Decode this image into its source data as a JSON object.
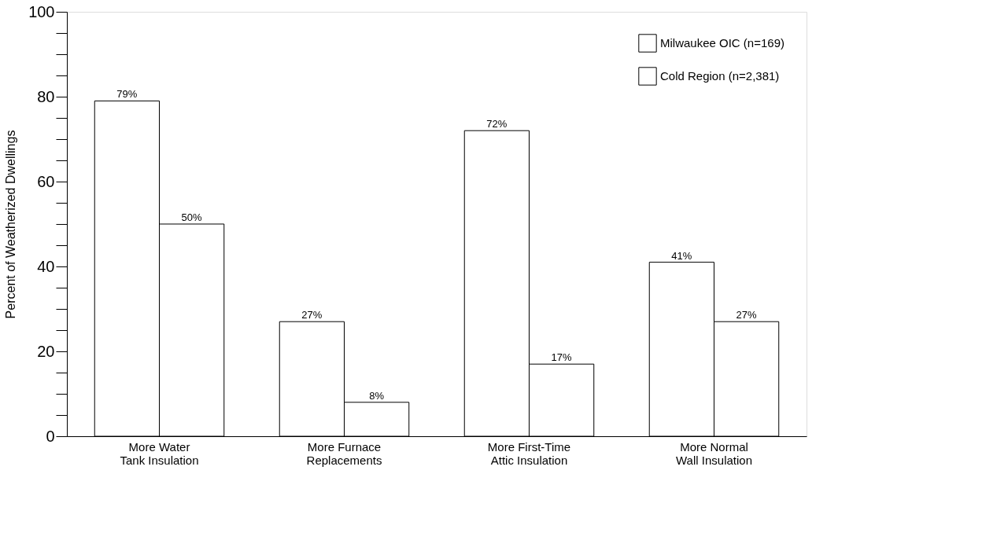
{
  "chart_data": {
    "type": "bar",
    "ylabel": "Percent of Weatherized Dwellings",
    "categories": [
      "More Water\nTank Insulation",
      "More Furnace\nReplacements",
      "More First-Time\nAttic Insulation",
      "More Normal\nWall Insulation"
    ],
    "series": [
      {
        "name": "Milwaukee OIC (n=169)",
        "color": "#ffffff",
        "values": [
          79,
          27,
          72,
          41
        ],
        "value_labels": [
          "79%",
          "27%",
          "72%",
          "41%"
        ]
      },
      {
        "name": "Cold Region (n=2,381)",
        "color": "#ffffff",
        "values": [
          50,
          8,
          17,
          27
        ],
        "value_labels": [
          "50%",
          "8%",
          "17%",
          "27%"
        ]
      }
    ],
    "ylim": [
      0,
      100
    ],
    "yticks": [
      0,
      {
        "value": 5,
        "label": null
      },
      {
        "value": 10,
        "label": null
      },
      {
        "value": 15,
        "label": null
      },
      20,
      {
        "value": 25,
        "label": null
      },
      {
        "value": 30,
        "label": null
      },
      {
        "value": 35,
        "label": null
      },
      40,
      {
        "value": 45,
        "label": null
      },
      {
        "value": 50,
        "label": null
      },
      {
        "value": 55,
        "label": null
      },
      60,
      {
        "value": 65,
        "label": null
      },
      {
        "value": 70,
        "label": null
      },
      {
        "value": 75,
        "label": null
      },
      80,
      {
        "value": 85,
        "label": null
      },
      {
        "value": 90,
        "label": null
      },
      {
        "value": 95,
        "label": null
      },
      100
    ],
    "legend": "top right",
    "grid": false
  }
}
